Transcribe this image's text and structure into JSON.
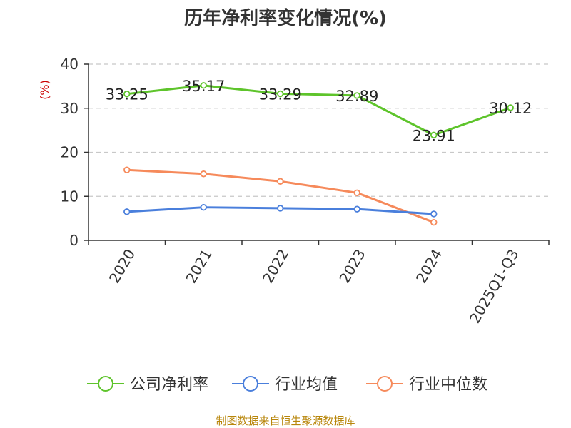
{
  "chart_data": {
    "type": "line",
    "title": "历年净利率变化情况(%)",
    "ylabel": "(%)",
    "xlabel": "",
    "categories": [
      "2020",
      "2021",
      "2022",
      "2023",
      "2024",
      "2025Q1-Q3"
    ],
    "ylim": [
      0,
      40
    ],
    "yticks": [
      0,
      10,
      20,
      30,
      40
    ],
    "grid": true,
    "legend_position": "bottom",
    "series": [
      {
        "name": "公司净利率",
        "color": "#5ec42b",
        "values": [
          33.25,
          35.17,
          33.29,
          32.89,
          23.91,
          30.12
        ],
        "labels": [
          "33.25",
          "35.17",
          "33.29",
          "32.89",
          "23.91",
          "30.12"
        ]
      },
      {
        "name": "行业均值",
        "color": "#4a7fdc",
        "values": [
          6.5,
          7.5,
          7.3,
          7.1,
          6.0,
          null
        ]
      },
      {
        "name": "行业中位数",
        "color": "#f68a5b",
        "values": [
          16.0,
          15.1,
          13.4,
          10.8,
          4.1,
          null
        ]
      }
    ]
  },
  "source": "制图数据来自恒生聚源数据库"
}
